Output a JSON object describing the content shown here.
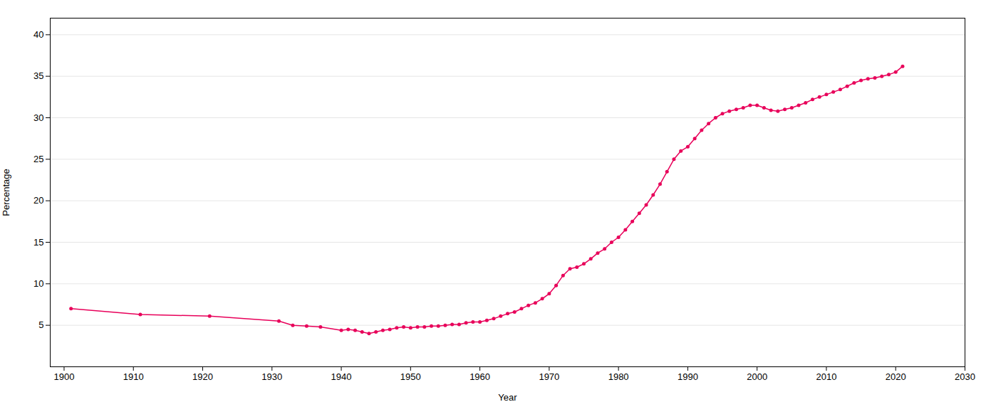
{
  "chart_data": {
    "type": "line",
    "xlabel": "Year",
    "ylabel": "Percentage",
    "x": [
      1901,
      1911,
      1921,
      1931,
      1933,
      1935,
      1937,
      1940,
      1941,
      1942,
      1943,
      1944,
      1945,
      1946,
      1947,
      1948,
      1949,
      1950,
      1951,
      1952,
      1953,
      1954,
      1955,
      1956,
      1957,
      1958,
      1959,
      1960,
      1961,
      1962,
      1963,
      1964,
      1965,
      1966,
      1967,
      1968,
      1969,
      1970,
      1971,
      1972,
      1973,
      1974,
      1975,
      1976,
      1977,
      1978,
      1979,
      1980,
      1981,
      1982,
      1983,
      1984,
      1985,
      1986,
      1987,
      1988,
      1989,
      1990,
      1991,
      1992,
      1993,
      1994,
      1995,
      1996,
      1997,
      1998,
      1999,
      2000,
      2001,
      2002,
      2003,
      2004,
      2005,
      2006,
      2007,
      2008,
      2009,
      2010,
      2011,
      2012,
      2013,
      2014,
      2015,
      2016,
      2017,
      2018,
      2019,
      2020,
      2021
    ],
    "values": [
      7.0,
      6.3,
      6.1,
      5.5,
      5.0,
      4.9,
      4.8,
      4.4,
      4.5,
      4.4,
      4.2,
      4.0,
      4.2,
      4.4,
      4.5,
      4.7,
      4.8,
      4.7,
      4.8,
      4.8,
      4.9,
      4.9,
      5.0,
      5.1,
      5.1,
      5.3,
      5.4,
      5.4,
      5.6,
      5.8,
      6.1,
      6.4,
      6.6,
      7.0,
      7.4,
      7.7,
      8.2,
      8.8,
      9.8,
      11.0,
      11.8,
      12.0,
      12.4,
      13.0,
      13.7,
      14.2,
      15.0,
      15.6,
      16.5,
      17.5,
      18.5,
      19.5,
      20.7,
      22.0,
      23.5,
      25.0,
      26.0,
      26.5,
      27.5,
      28.5,
      29.3,
      30.0,
      30.5,
      30.8,
      31.0,
      31.2,
      31.5,
      31.5,
      31.2,
      30.9,
      30.8,
      31.0,
      31.2,
      31.5,
      31.8,
      32.2,
      32.5,
      32.8,
      33.1,
      33.4,
      33.8,
      34.2,
      34.5,
      34.7,
      34.8,
      35.0,
      35.2,
      35.5,
      36.2
    ],
    "color": "#e8005a",
    "marker": "circle",
    "xlim": [
      1898,
      2030
    ],
    "xticks": [
      1900,
      1910,
      1920,
      1930,
      1940,
      1950,
      1960,
      1970,
      1980,
      1990,
      2000,
      2010,
      2020,
      2030
    ],
    "ylim": [
      0,
      42
    ],
    "yticks": [
      5,
      10,
      15,
      20,
      25,
      30,
      35,
      40
    ],
    "grid": true
  }
}
